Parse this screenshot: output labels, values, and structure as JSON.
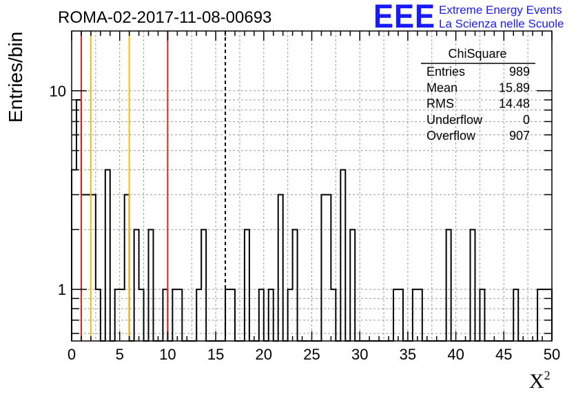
{
  "chart_data": {
    "type": "histogram",
    "title": "ROMA-02-2017-11-08-00693",
    "xlabel": "X",
    "xlabel_superscript": "2",
    "ylabel": "Entries/bin",
    "xlim": [
      0,
      50
    ],
    "ylim": [
      0.55,
      20
    ],
    "y_scale": "log",
    "bin_width": 0.5,
    "grid": true,
    "x_ticks": [
      0,
      5,
      10,
      15,
      20,
      25,
      30,
      35,
      40,
      45,
      50
    ],
    "y_ticks": [
      1,
      10
    ],
    "bins": [
      {
        "x": 0.0,
        "v": 4
      },
      {
        "x": 0.5,
        "v": 9
      },
      {
        "x": 1.0,
        "v": 3
      },
      {
        "x": 1.5,
        "v": 3
      },
      {
        "x": 2.0,
        "v": 3
      },
      {
        "x": 2.5,
        "v": 1
      },
      {
        "x": 3.5,
        "v": 4
      },
      {
        "x": 4.5,
        "v": 1
      },
      {
        "x": 5.0,
        "v": 1
      },
      {
        "x": 5.5,
        "v": 3
      },
      {
        "x": 6.5,
        "v": 2
      },
      {
        "x": 7.0,
        "v": 1
      },
      {
        "x": 8.0,
        "v": 2
      },
      {
        "x": 9.5,
        "v": 1
      },
      {
        "x": 10.5,
        "v": 1
      },
      {
        "x": 11.0,
        "v": 1
      },
      {
        "x": 13.0,
        "v": 1
      },
      {
        "x": 13.5,
        "v": 2
      },
      {
        "x": 16.0,
        "v": 1
      },
      {
        "x": 16.5,
        "v": 1
      },
      {
        "x": 18.0,
        "v": 2
      },
      {
        "x": 19.5,
        "v": 1
      },
      {
        "x": 20.5,
        "v": 1
      },
      {
        "x": 21.5,
        "v": 3
      },
      {
        "x": 22.5,
        "v": 1
      },
      {
        "x": 23.0,
        "v": 2
      },
      {
        "x": 26.0,
        "v": 3
      },
      {
        "x": 26.5,
        "v": 3
      },
      {
        "x": 27.0,
        "v": 1
      },
      {
        "x": 28.0,
        "v": 4
      },
      {
        "x": 29.0,
        "v": 2
      },
      {
        "x": 33.5,
        "v": 1
      },
      {
        "x": 34.0,
        "v": 1
      },
      {
        "x": 35.5,
        "v": 1
      },
      {
        "x": 36.0,
        "v": 1
      },
      {
        "x": 39.0,
        "v": 2
      },
      {
        "x": 41.5,
        "v": 2
      },
      {
        "x": 42.5,
        "v": 1
      },
      {
        "x": 46.0,
        "v": 1
      },
      {
        "x": 48.5,
        "v": 1
      },
      {
        "x": 49.0,
        "v": 1
      },
      {
        "x": 49.5,
        "v": 1
      }
    ],
    "reference_lines": [
      {
        "x": 1.0,
        "color": "#e02020",
        "style": "solid"
      },
      {
        "x": 2.0,
        "color": "#f0c000",
        "style": "solid"
      },
      {
        "x": 6.0,
        "color": "#f0c000",
        "style": "solid"
      },
      {
        "x": 10.0,
        "color": "#e02020",
        "style": "solid"
      },
      {
        "x": 16.0,
        "color": "#000000",
        "style": "dashed"
      }
    ],
    "stats_box": {
      "name": "ChiSquare",
      "rows": [
        {
          "label": "Entries",
          "value": "989"
        },
        {
          "label": "Mean",
          "value": "15.89"
        },
        {
          "label": "RMS",
          "value": "14.48"
        },
        {
          "label": "Underflow",
          "value": "0"
        },
        {
          "label": "Overflow",
          "value": "907"
        }
      ]
    }
  },
  "logo": {
    "letters": "EEE",
    "line1": "Extreme Energy Events",
    "line2": "La Scienza nelle Scuole",
    "color": "#1a1aff"
  }
}
